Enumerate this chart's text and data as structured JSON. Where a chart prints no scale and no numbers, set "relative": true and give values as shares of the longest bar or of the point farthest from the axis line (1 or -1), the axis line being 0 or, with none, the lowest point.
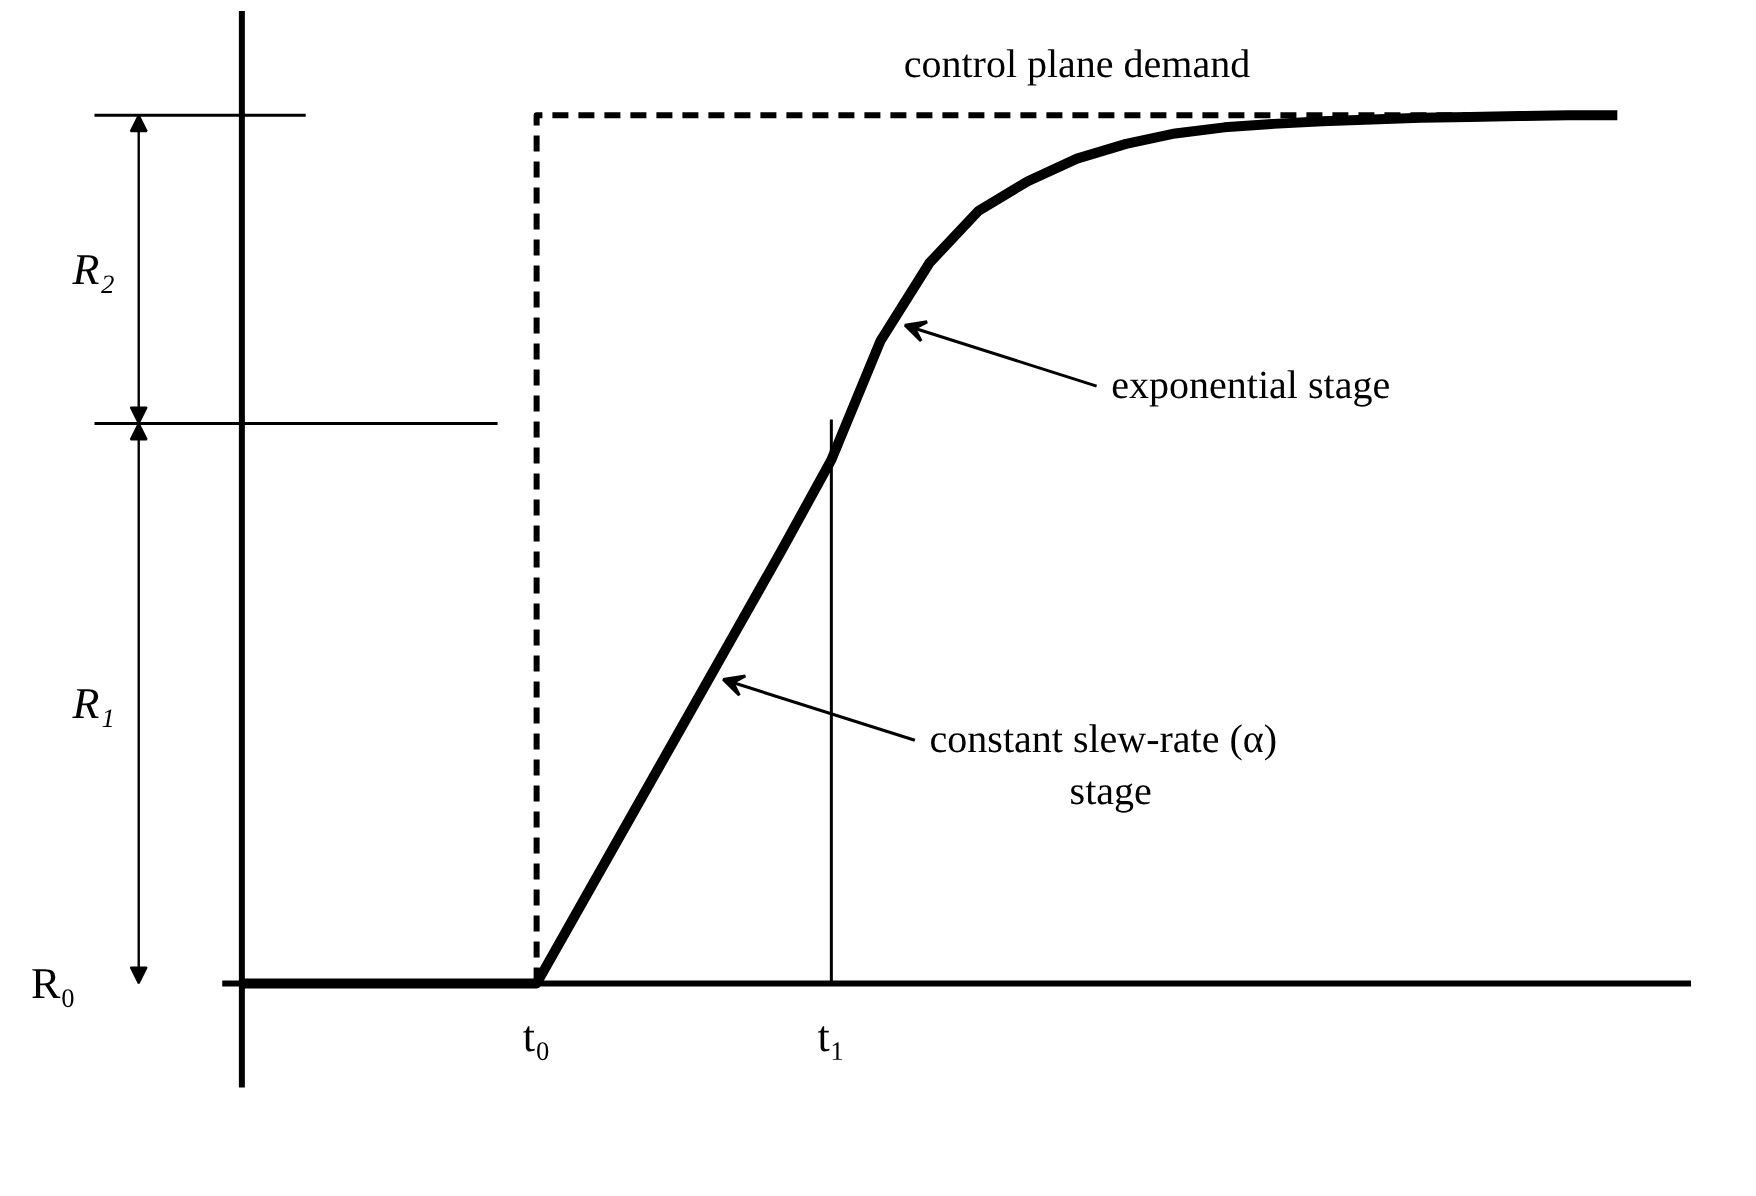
{
  "chart_data": {
    "type": "line",
    "relative": true,
    "categories": [
      null,
      null,
      null,
      null,
      null,
      null,
      "t₀",
      null,
      null,
      null,
      null,
      null,
      "t₁",
      null,
      null,
      null,
      null,
      null,
      null,
      null,
      null,
      null,
      null,
      null,
      null,
      null,
      null,
      null,
      null
    ],
    "series": [
      {
        "name": "control plane demand",
        "type": "step",
        "color": "#000000",
        "line_style": "dashed",
        "values": [
          null,
          null,
          null,
          null,
          null,
          null,
          0,
          1,
          1,
          1,
          1,
          1,
          1,
          1,
          1,
          1,
          1,
          1,
          1,
          1,
          1,
          1,
          1,
          1,
          1,
          1,
          1,
          1,
          1
        ]
      },
      {
        "color": "#000000",
        "line_style": "solid",
        "values": [
          0,
          0,
          0,
          0,
          0,
          0,
          0,
          0.1,
          0.2,
          0.3,
          0.4,
          0.5,
          0.603,
          0.74,
          0.83,
          0.89,
          0.924,
          0.95,
          0.967,
          0.979,
          0.986,
          0.99,
          0.993,
          0.995,
          0.997,
          0.998,
          0.999,
          1,
          1
        ]
      }
    ],
    "ref_lines": [
      {
        "axis": "x",
        "value": "t₁"
      },
      {
        "axis": "y",
        "value": 0.645
      }
    ],
    "annotations": [
      "exponential stage",
      "constant slew-rate (α)\nstage",
      "R₀",
      "R₁",
      "R₂"
    ],
    "legend": false
  }
}
